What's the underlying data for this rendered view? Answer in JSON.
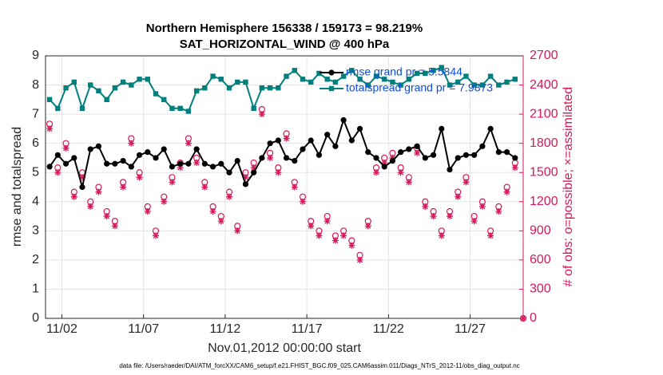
{
  "chart_data": {
    "type": "line",
    "title": "Northern Hemisphere 156338 / 159173 = 98.219%",
    "subtitle": "SAT_HORIZONTAL_WIND @ 400 hPa",
    "xlabel": "Nov.01,2012 00:00:00 start",
    "ylabel": "rmse and totalspread",
    "y2label": "# of obs: o=possible; ×=assimilated",
    "footnote": "data file: /Users/raeder/DAI/ATM_forcXX/CAM6_setup/f.e21.FHIST_BGC.f09_025.CAM6assim.011/Diags_NTrS_2012-11/obs_diag_output.nc",
    "x": [
      0.25,
      0.75,
      1.25,
      1.75,
      2.25,
      2.75,
      3.25,
      3.75,
      4.25,
      4.75,
      5.25,
      5.75,
      6.25,
      6.75,
      7.25,
      7.75,
      8.25,
      8.75,
      9.25,
      9.75,
      10.25,
      10.75,
      11.25,
      11.75,
      12.25,
      12.75,
      13.25,
      13.75,
      14.25,
      14.75,
      15.25,
      15.75,
      16.25,
      16.75,
      17.25,
      17.75,
      18.25,
      18.75,
      19.25,
      19.75,
      20.25,
      20.75,
      21.25,
      21.75,
      22.25,
      22.75,
      23.25,
      23.75,
      24.25,
      24.75,
      25.25,
      25.75,
      26.25,
      26.75,
      27.25,
      27.75,
      28.25,
      28.75,
      29.25
    ],
    "series": [
      {
        "type": "scatter",
        "marker": "o",
        "color": "#d6185a",
        "axis": "y2",
        "values": [
          2000,
          1550,
          1800,
          1300,
          1500,
          1200,
          1350,
          1100,
          1000,
          1400,
          1850,
          1500,
          1150,
          900,
          1250,
          1450,
          1600,
          1850,
          1650,
          1400,
          1150,
          1050,
          1300,
          950,
          1500,
          1600,
          2150,
          1700,
          1550,
          1900,
          1400,
          1250,
          1000,
          900,
          1050,
          850,
          900,
          800,
          650,
          1000,
          1550,
          1650,
          1700,
          1550,
          1450,
          1750,
          1200,
          1100,
          900,
          1100,
          1300,
          1450,
          1050,
          1200,
          900,
          1150,
          1350,
          1600,
          0
        ]
      },
      {
        "type": "scatter",
        "marker": "*",
        "color": "#d6185a",
        "axis": "y2",
        "values": [
          1950,
          1500,
          1750,
          1250,
          1450,
          1150,
          1300,
          1050,
          950,
          1350,
          1800,
          1450,
          1100,
          850,
          1200,
          1400,
          1550,
          1800,
          1600,
          1350,
          1100,
          1000,
          1250,
          900,
          1450,
          1550,
          2100,
          1650,
          1500,
          1850,
          1350,
          1200,
          950,
          850,
          1000,
          800,
          850,
          750,
          600,
          950,
          1500,
          1600,
          1650,
          1500,
          1400,
          1700,
          1150,
          1050,
          850,
          1050,
          1250,
          1400,
          1000,
          1150,
          850,
          1100,
          1300,
          1550,
          0
        ]
      },
      {
        "type": "line",
        "marker": "circle",
        "name": "rmse grand pr = 5.5844",
        "color": "#000000",
        "values": [
          5.2,
          5.6,
          5.3,
          5.5,
          4.5,
          5.8,
          5.9,
          5.3,
          5.3,
          5.4,
          5.2,
          5.6,
          5.7,
          5.5,
          5.8,
          5.2,
          5.3,
          5.3,
          5.8,
          5.3,
          5.2,
          5.3,
          5.0,
          5.4,
          4.6,
          5.0,
          5.5,
          6.0,
          6.1,
          5.5,
          5.4,
          5.8,
          6.1,
          5.6,
          6.3,
          5.9,
          6.8,
          6.1,
          6.5,
          5.7,
          5.5,
          5.2,
          5.4,
          5.7,
          5.8,
          5.9,
          5.5,
          5.6,
          6.5,
          5.1,
          5.5,
          5.6,
          5.6,
          5.9,
          6.5,
          5.7,
          5.7,
          5.5,
          null
        ]
      },
      {
        "type": "line",
        "marker": "square",
        "name": "totalspread grand pr = 7.9873",
        "color": "#007f7f",
        "values": [
          7.5,
          7.2,
          7.9,
          8.1,
          7.2,
          8.0,
          7.8,
          7.5,
          7.9,
          8.1,
          8.0,
          8.2,
          8.2,
          7.7,
          7.5,
          7.2,
          7.2,
          7.1,
          7.8,
          7.9,
          8.3,
          8.2,
          7.9,
          8.1,
          8.1,
          7.2,
          7.9,
          7.9,
          7.9,
          8.3,
          8.5,
          8.2,
          8.1,
          8.4,
          8.2,
          8.1,
          8.3,
          8.5,
          8.2,
          8.0,
          8.3,
          8.2,
          8.1,
          8.0,
          8.2,
          8.4,
          8.4,
          8.5,
          8.6,
          8.0,
          8.1,
          8.3,
          8.0,
          8.0,
          8.3,
          8.0,
          8.1,
          8.2,
          null
        ]
      }
    ],
    "xlim": [
      0,
      29.25
    ],
    "xticks": [
      {
        "value": 1,
        "label": "11/02"
      },
      {
        "value": 6,
        "label": "11/07"
      },
      {
        "value": 11,
        "label": "11/12"
      },
      {
        "value": 16,
        "label": "11/17"
      },
      {
        "value": 21,
        "label": "11/22"
      },
      {
        "value": 26,
        "label": "11/27"
      }
    ],
    "ylim": [
      0,
      9
    ],
    "yticks": [
      0,
      1,
      2,
      3,
      4,
      5,
      6,
      7,
      8,
      9
    ],
    "y2lim": [
      0,
      2700
    ],
    "y2ticks": [
      0,
      300,
      600,
      900,
      1200,
      1500,
      1800,
      2100,
      2400,
      2700
    ],
    "y2color": "#d6185a",
    "grid": true,
    "legend": "northeast"
  }
}
